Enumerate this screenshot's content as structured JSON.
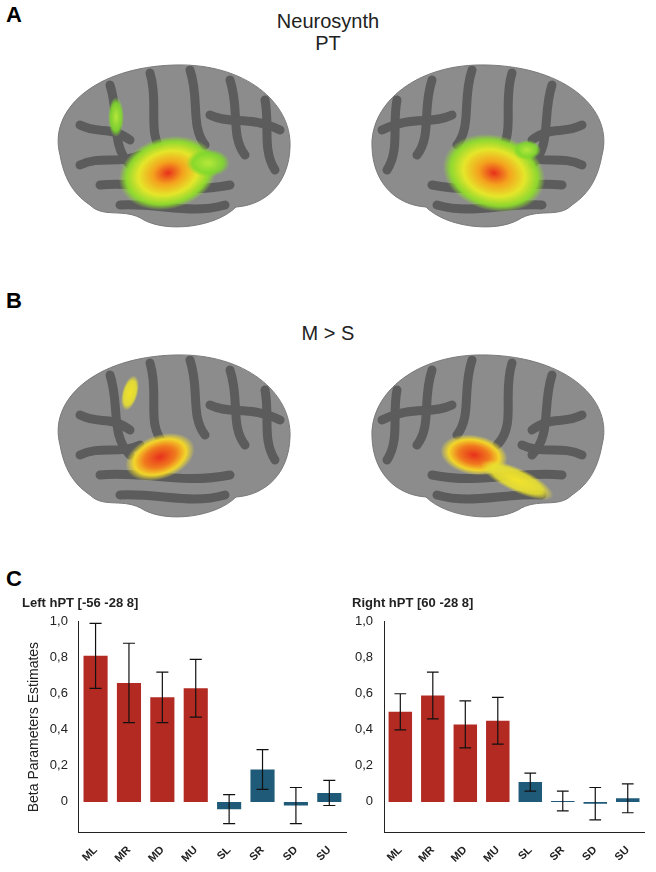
{
  "panels": [
    {
      "label": "A",
      "texts": [
        "Neurosynth",
        "PT"
      ]
    },
    {
      "label": "B",
      "texts": [
        "M > S"
      ]
    }
  ],
  "chart_panel_label": "C",
  "chart_data": [
    {
      "type": "bar",
      "title": "Left hPT [-56 -28 8]",
      "ylabel": "Beta Parameters Estimates",
      "categories": [
        "ML",
        "MR",
        "MD",
        "MU",
        "SL",
        "SR",
        "SD",
        "SU"
      ],
      "values": [
        0.81,
        0.66,
        0.58,
        0.63,
        -0.04,
        0.18,
        -0.02,
        0.05
      ],
      "errors": [
        0.18,
        0.22,
        0.14,
        0.16,
        0.08,
        0.11,
        0.1,
        0.07
      ],
      "colors": [
        "#b22a22",
        "#b22a22",
        "#b22a22",
        "#b22a22",
        "#1f5b78",
        "#1f5b78",
        "#1f5b78",
        "#1f5b78"
      ],
      "ylim": [
        -0.17,
        1.0
      ],
      "yticks": [
        0,
        {
          "value": 0.2,
          "label": "0,2"
        },
        {
          "value": 0.4,
          "label": "0,4"
        },
        {
          "value": 0.6,
          "label": "0,6"
        },
        {
          "value": 0.8,
          "label": "0,8"
        },
        {
          "value": 1.0,
          "label": "1,0"
        }
      ],
      "grid": false
    },
    {
      "type": "bar",
      "title": "Right hPT [60 -28 8]",
      "categories": [
        "ML",
        "MR",
        "MD",
        "MU",
        "SL",
        "SR",
        "SD",
        "SU"
      ],
      "values": [
        0.5,
        0.59,
        0.43,
        0.45,
        0.11,
        0.005,
        -0.01,
        0.02
      ],
      "errors": [
        0.1,
        0.13,
        0.13,
        0.13,
        0.05,
        0.055,
        0.09,
        0.08
      ],
      "colors": [
        "#b22a22",
        "#b22a22",
        "#b22a22",
        "#b22a22",
        "#1f5b78",
        "#1f5b78",
        "#1f5b78",
        "#1f5b78"
      ],
      "ylim": [
        -0.17,
        1.0
      ],
      "yticks": [
        0,
        {
          "value": 0.2,
          "label": "0,2"
        },
        {
          "value": 0.4,
          "label": "0,4"
        },
        {
          "value": 0.6,
          "label": "0,6"
        },
        {
          "value": 0.8,
          "label": "0,8"
        },
        {
          "value": 1.0,
          "label": "1,0"
        }
      ],
      "grid": false
    }
  ]
}
